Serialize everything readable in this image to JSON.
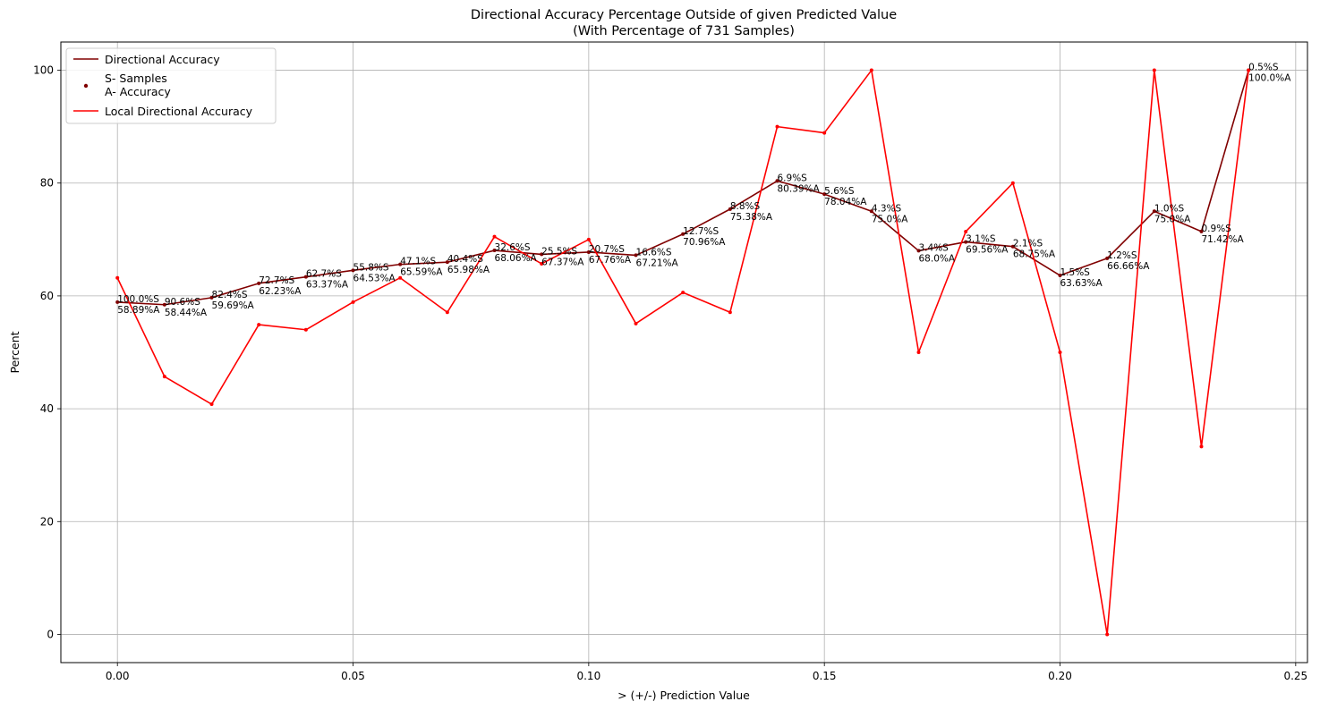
{
  "chart_data": {
    "type": "line",
    "title": "Directional Accuracy Percentage Outside of given Predicted Value",
    "subtitle": "(With Percentage of 731 Samples)",
    "xlabel": "> (+/-) Prediction Value",
    "ylabel": "Percent",
    "xlim": [
      -0.012,
      0.2525
    ],
    "ylim": [
      -5,
      105
    ],
    "xticks": [
      0.0,
      0.05,
      0.1,
      0.15,
      0.2,
      0.25
    ],
    "xtick_labels": [
      "0.00",
      "0.05",
      "0.10",
      "0.15",
      "0.20",
      "0.25"
    ],
    "yticks": [
      0,
      20,
      40,
      60,
      80,
      100
    ],
    "ytick_labels": [
      "0",
      "20",
      "40",
      "60",
      "80",
      "100"
    ],
    "grid": true,
    "legend_position": "top-left",
    "legend": [
      {
        "label": "Directional Accuracy",
        "kind": "line",
        "color": "#800000"
      },
      {
        "label": "S- Samples",
        "label2": "A- Accuracy",
        "kind": "point",
        "color": "#800000"
      },
      {
        "label": "Local Directional Accuracy",
        "kind": "line",
        "color": "#ff0000"
      }
    ],
    "x": [
      0.0,
      0.01,
      0.02,
      0.03,
      0.04,
      0.05,
      0.06,
      0.07,
      0.08,
      0.09,
      0.1,
      0.11,
      0.12,
      0.13,
      0.14,
      0.15,
      0.16,
      0.17,
      0.18,
      0.19,
      0.2,
      0.21,
      0.22,
      0.23,
      0.24
    ],
    "series": [
      {
        "name": "Directional Accuracy",
        "color": "#800000",
        "values": [
          58.89,
          58.44,
          59.69,
          62.23,
          63.37,
          64.53,
          65.59,
          65.98,
          68.06,
          67.37,
          67.76,
          67.21,
          70.96,
          75.38,
          80.39,
          78.04,
          75.0,
          68.0,
          69.56,
          68.75,
          63.63,
          66.66,
          75.0,
          71.42,
          100.0
        ]
      },
      {
        "name": "Local Directional Accuracy",
        "color": "#ff0000",
        "values": [
          63.2,
          45.7,
          40.8,
          54.9,
          54.0,
          58.9,
          63.2,
          57.1,
          70.5,
          65.7,
          70.0,
          55.1,
          60.6,
          57.1,
          90.0,
          88.9,
          100.0,
          50.0,
          71.4,
          80.0,
          50.0,
          0.0,
          100.0,
          33.3,
          100.0
        ]
      }
    ],
    "annotations": [
      {
        "s": "100.0%S",
        "a": "58.89%A"
      },
      {
        "s": "90.6%S",
        "a": "58.44%A"
      },
      {
        "s": "82.4%S",
        "a": "59.69%A"
      },
      {
        "s": "72.7%S",
        "a": "62.23%A"
      },
      {
        "s": "62.7%S",
        "a": "63.37%A"
      },
      {
        "s": "55.8%S",
        "a": "64.53%A"
      },
      {
        "s": "47.1%S",
        "a": "65.59%A"
      },
      {
        "s": "40.4%S",
        "a": "65.98%A"
      },
      {
        "s": "32.6%S",
        "a": "68.06%A"
      },
      {
        "s": "25.5%S",
        "a": "67.37%A"
      },
      {
        "s": "20.7%S",
        "a": "67.76%A"
      },
      {
        "s": "16.6%S",
        "a": "67.21%A"
      },
      {
        "s": "12.7%S",
        "a": "70.96%A"
      },
      {
        "s": "8.8%S",
        "a": "75.38%A"
      },
      {
        "s": "6.9%S",
        "a": "80.39%A"
      },
      {
        "s": "5.6%S",
        "a": "78.04%A"
      },
      {
        "s": "4.3%S",
        "a": "75.0%A"
      },
      {
        "s": "3.4%S",
        "a": "68.0%A"
      },
      {
        "s": "3.1%S",
        "a": "69.56%A"
      },
      {
        "s": "2.1%S",
        "a": "68.75%A"
      },
      {
        "s": "1.5%S",
        "a": "63.63%A"
      },
      {
        "s": "1.2%S",
        "a": "66.66%A"
      },
      {
        "s": "1.0%S",
        "a": "75.0%A"
      },
      {
        "s": "0.9%S",
        "a": "71.42%A"
      },
      {
        "s": "0.5%S",
        "a": "100.0%A"
      }
    ]
  }
}
